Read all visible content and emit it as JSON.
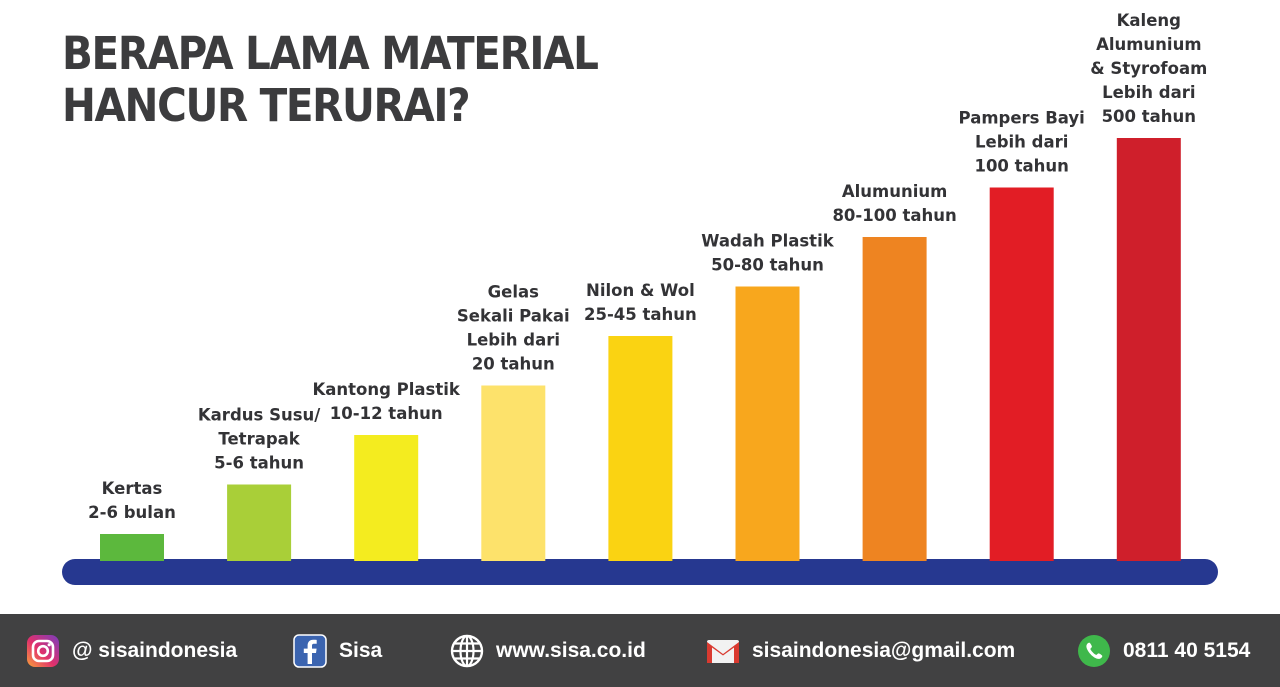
{
  "title": {
    "line1": "BERAPA LAMA MATERIAL",
    "line2": "HANCUR TERURAI?"
  },
  "chart_data": {
    "type": "bar",
    "title": "BERAPA LAMA MATERIAL HANCUR TERURAI?",
    "categories": [
      "Kertas",
      "Kardus Susu/ Tetrapak",
      "Kantong Plastik",
      "Gelas Sekali Pakai",
      "Nilon & Wol",
      "Wadah Plastik",
      "Alumunium",
      "Pampers Bayi",
      "Kaleng Alumunium & Styrofoam"
    ],
    "values": [
      1,
      2,
      3,
      4,
      5,
      6,
      7,
      8,
      9
    ],
    "bars": [
      {
        "lines": [
          "Kertas",
          "2-6 bulan"
        ],
        "color": "#5cb83d"
      },
      {
        "lines": [
          "Kardus Susu/",
          "Tetrapak",
          "5-6 tahun"
        ],
        "color": "#a9cf38"
      },
      {
        "lines": [
          "Kantong Plastik",
          "10-12 tahun"
        ],
        "color": "#f4ec1f"
      },
      {
        "lines": [
          "Gelas",
          "Sekali Pakai",
          "Lebih dari",
          "20 tahun"
        ],
        "color": "#fde26b"
      },
      {
        "lines": [
          "Nilon & Wol",
          "25-45 tahun"
        ],
        "color": "#fad312"
      },
      {
        "lines": [
          "Wadah Plastik",
          "50-80 tahun"
        ],
        "color": "#f8a71d"
      },
      {
        "lines": [
          "Alumunium",
          "80-100 tahun"
        ],
        "color": "#ee8421"
      },
      {
        "lines": [
          "Pampers Bayi",
          "Lebih dari",
          "100 tahun"
        ],
        "color": "#e21d25"
      },
      {
        "lines": [
          "Kaleng",
          "Alumunium",
          "& Styrofoam",
          "Lebih dari",
          "500 tahun"
        ],
        "color": "#cf1f2b"
      }
    ],
    "baseline_color": "#263890",
    "note": "bar heights are an ordinal rank (steps), not to scale"
  },
  "footer": {
    "instagram": "@ sisaindonesia",
    "facebook": "Sisa",
    "website": "www.sisa.co.id",
    "email": "sisaindonesia@gmail.com",
    "phone": "0811 40 5154",
    "icons": [
      "instagram-icon",
      "facebook-icon",
      "globe-icon",
      "mail-icon",
      "phone-icon"
    ]
  }
}
